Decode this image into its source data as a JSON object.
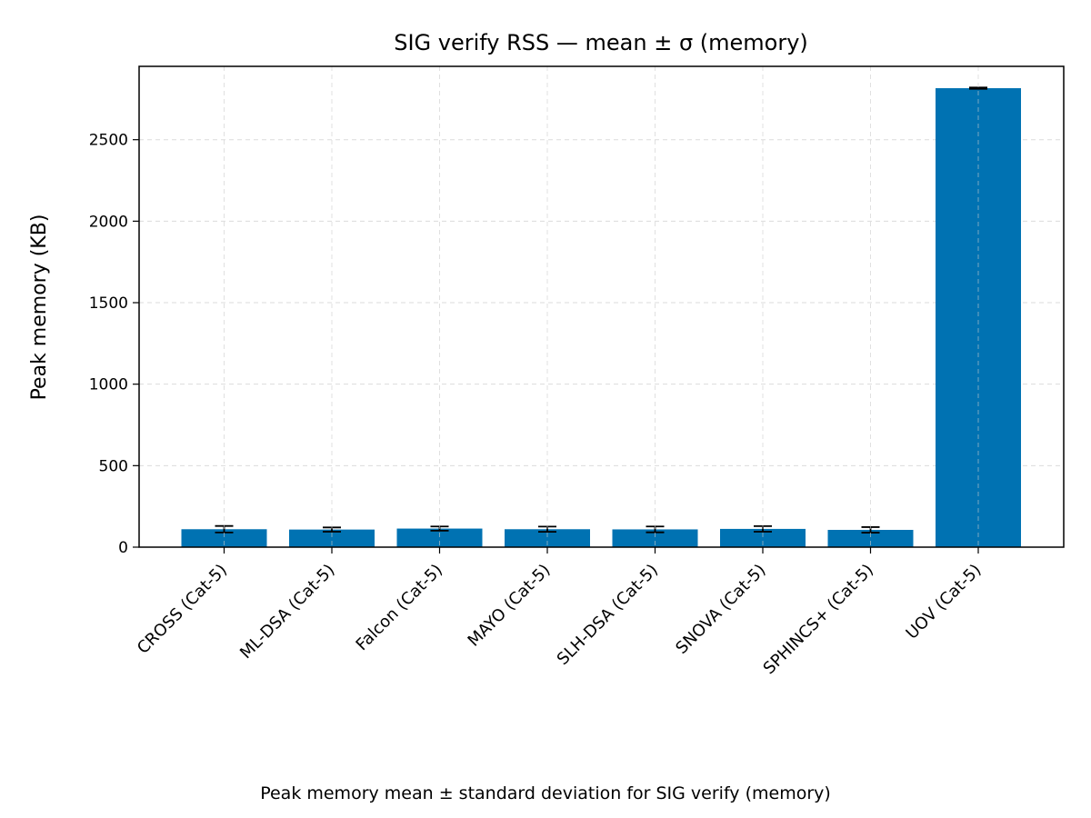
{
  "chart_data": {
    "type": "bar",
    "title": "SIG verify RSS — mean ± σ (memory)",
    "xlabel": "",
    "ylabel": "Peak memory (KB)",
    "categories": [
      "CROSS (Cat-5)",
      "ML-DSA (Cat-5)",
      "Falcon (Cat-5)",
      "MAYO (Cat-5)",
      "SLH-DSA (Cat-5)",
      "SNOVA (Cat-5)",
      "SPHINCS+ (Cat-5)",
      "UOV (Cat-5)"
    ],
    "values": [
      110,
      108,
      114,
      110,
      109,
      112,
      106,
      2816
    ],
    "errors": [
      20,
      13,
      13,
      16,
      18,
      17,
      17,
      4
    ],
    "ylim": [
      0,
      2950
    ],
    "yticks": [
      0,
      500,
      1000,
      1500,
      2000,
      2500
    ],
    "grid": true,
    "bar_color": "#0072b2",
    "error_color": "#000000"
  },
  "caption": "Peak memory mean ± standard deviation for SIG verify (memory)"
}
